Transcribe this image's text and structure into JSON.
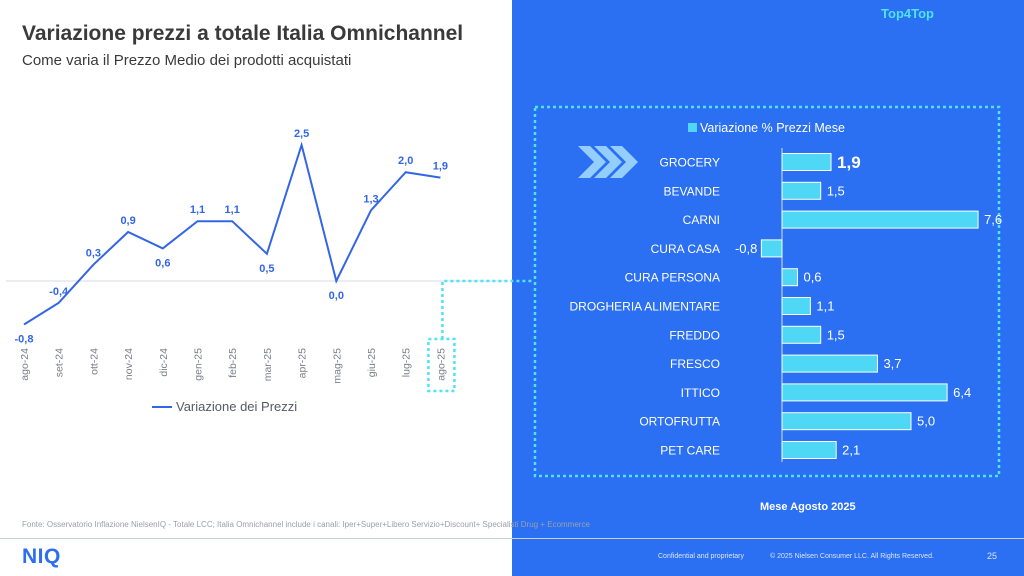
{
  "header": {
    "title": "Variazione prezzi a totale Italia Omnichannel",
    "subtitle": "Come varia il Prezzo Medio dei prodotti acquistati",
    "tag": "Top4Top"
  },
  "footer": {
    "source": "Fonte: Osservatorio Inflazione NielsenIQ - Totale LCC; Italia Omnichannel include i canali: Iper+Super+Libero Servizio+Discount+ Specialisti Drug + Ecommerce",
    "logo": "NIQ",
    "confidential": "Confidential and proprietary",
    "copyright": "© 2025 Nielsen Consumer LLC. All Rights Reserved.",
    "page": "25"
  },
  "right_panel": {
    "month_label": "Mese Agosto 2025"
  },
  "colors": {
    "line": "#3366e6",
    "panel": "#2b6ff2",
    "bar": "#4fd7f6",
    "bar_border": "#ffffff",
    "highlight": "#4fe3f5"
  },
  "chart_data": [
    {
      "type": "line",
      "title": "",
      "x": [
        "ago-24",
        "set-24",
        "ott-24",
        "nov-24",
        "dic-24",
        "gen-25",
        "feb-25",
        "mar-25",
        "apr-25",
        "mag-25",
        "giu-25",
        "lug-25",
        "ago-25"
      ],
      "series": [
        {
          "name": "Variazione dei Prezzi",
          "values": [
            -0.8,
            -0.4,
            0.3,
            0.9,
            0.6,
            1.1,
            1.1,
            0.5,
            2.5,
            0.0,
            1.3,
            2.0,
            1.9
          ]
        }
      ],
      "labels": [
        "-0,8",
        "-0,4",
        "0,3",
        "0,9",
        "0,6",
        "1,1",
        "1,1",
        "0,5",
        "2,5",
        "0,0",
        "1,3",
        "2,0",
        "1,9"
      ],
      "legend_position": "bottom",
      "highlight_category": "ago-25"
    },
    {
      "type": "bar",
      "orientation": "horizontal",
      "legend": "Variazione % Prezzi Mese",
      "legend_position": "top",
      "categories": [
        "GROCERY",
        "BEVANDE",
        "CARNI",
        "CURA CASA",
        "CURA PERSONA",
        "DROGHERIA ALIMENTARE",
        "FREDDO",
        "FRESCO",
        "ITTICO",
        "ORTOFRUTTA",
        "PET CARE"
      ],
      "values": [
        1.9,
        1.5,
        7.6,
        -0.8,
        0.6,
        1.1,
        1.5,
        3.7,
        6.4,
        5.0,
        2.1
      ],
      "labels": [
        "1,9",
        "1,5",
        "7,6",
        "-0,8",
        "0,6",
        "1,1",
        "1,5",
        "3,7",
        "6,4",
        "5,0",
        "2,1"
      ],
      "highlight_category": "GROCERY"
    }
  ]
}
